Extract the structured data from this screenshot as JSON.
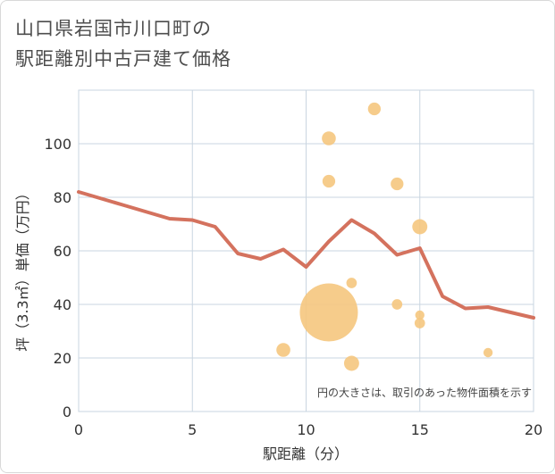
{
  "title_lines": [
    "山口県岩国市川口町の",
    "駅距離別中古戸建て価格"
  ],
  "chart_data": {
    "type": "scatter",
    "title": "山口県岩国市川口町の駅距離別中古戸建て価格",
    "xlabel": "駅距離（分）",
    "ylabel": "坪（3.3㎡）単価（万円）",
    "xlim": [
      0,
      20
    ],
    "ylim": [
      0,
      120
    ],
    "xticks": [
      0,
      5,
      10,
      15,
      20
    ],
    "yticks": [
      0,
      20,
      40,
      60,
      80,
      100
    ],
    "grid": true,
    "note": "円の大きさは、取引のあった物件面積を示す",
    "colors": {
      "points": "#f5c77e",
      "line": "#d4725e",
      "grid": "#c9d5e0"
    },
    "points": [
      {
        "x": 9,
        "y": 23,
        "size": 1.2
      },
      {
        "x": 11,
        "y": 37,
        "size": 5.0
      },
      {
        "x": 11,
        "y": 86,
        "size": 1.1
      },
      {
        "x": 11,
        "y": 102,
        "size": 1.2
      },
      {
        "x": 12,
        "y": 18,
        "size": 1.3
      },
      {
        "x": 12,
        "y": 48,
        "size": 0.9
      },
      {
        "x": 13,
        "y": 113,
        "size": 1.1
      },
      {
        "x": 14,
        "y": 40,
        "size": 0.9
      },
      {
        "x": 14,
        "y": 85,
        "size": 1.1
      },
      {
        "x": 15,
        "y": 69,
        "size": 1.3
      },
      {
        "x": 15,
        "y": 36,
        "size": 0.8
      },
      {
        "x": 15,
        "y": 33,
        "size": 0.9
      },
      {
        "x": 18,
        "y": 22,
        "size": 0.8
      }
    ],
    "trend": {
      "x": [
        0,
        1,
        2,
        3,
        4,
        5,
        6,
        7,
        8,
        9,
        10,
        11,
        12,
        13,
        14,
        15,
        16,
        17,
        18,
        19,
        20
      ],
      "y": [
        82,
        79.5,
        77,
        74.5,
        72,
        71.5,
        69,
        59,
        57,
        60.5,
        54,
        63.5,
        71.5,
        66.5,
        58.5,
        61,
        43,
        38.5,
        39,
        37,
        35
      ]
    }
  }
}
